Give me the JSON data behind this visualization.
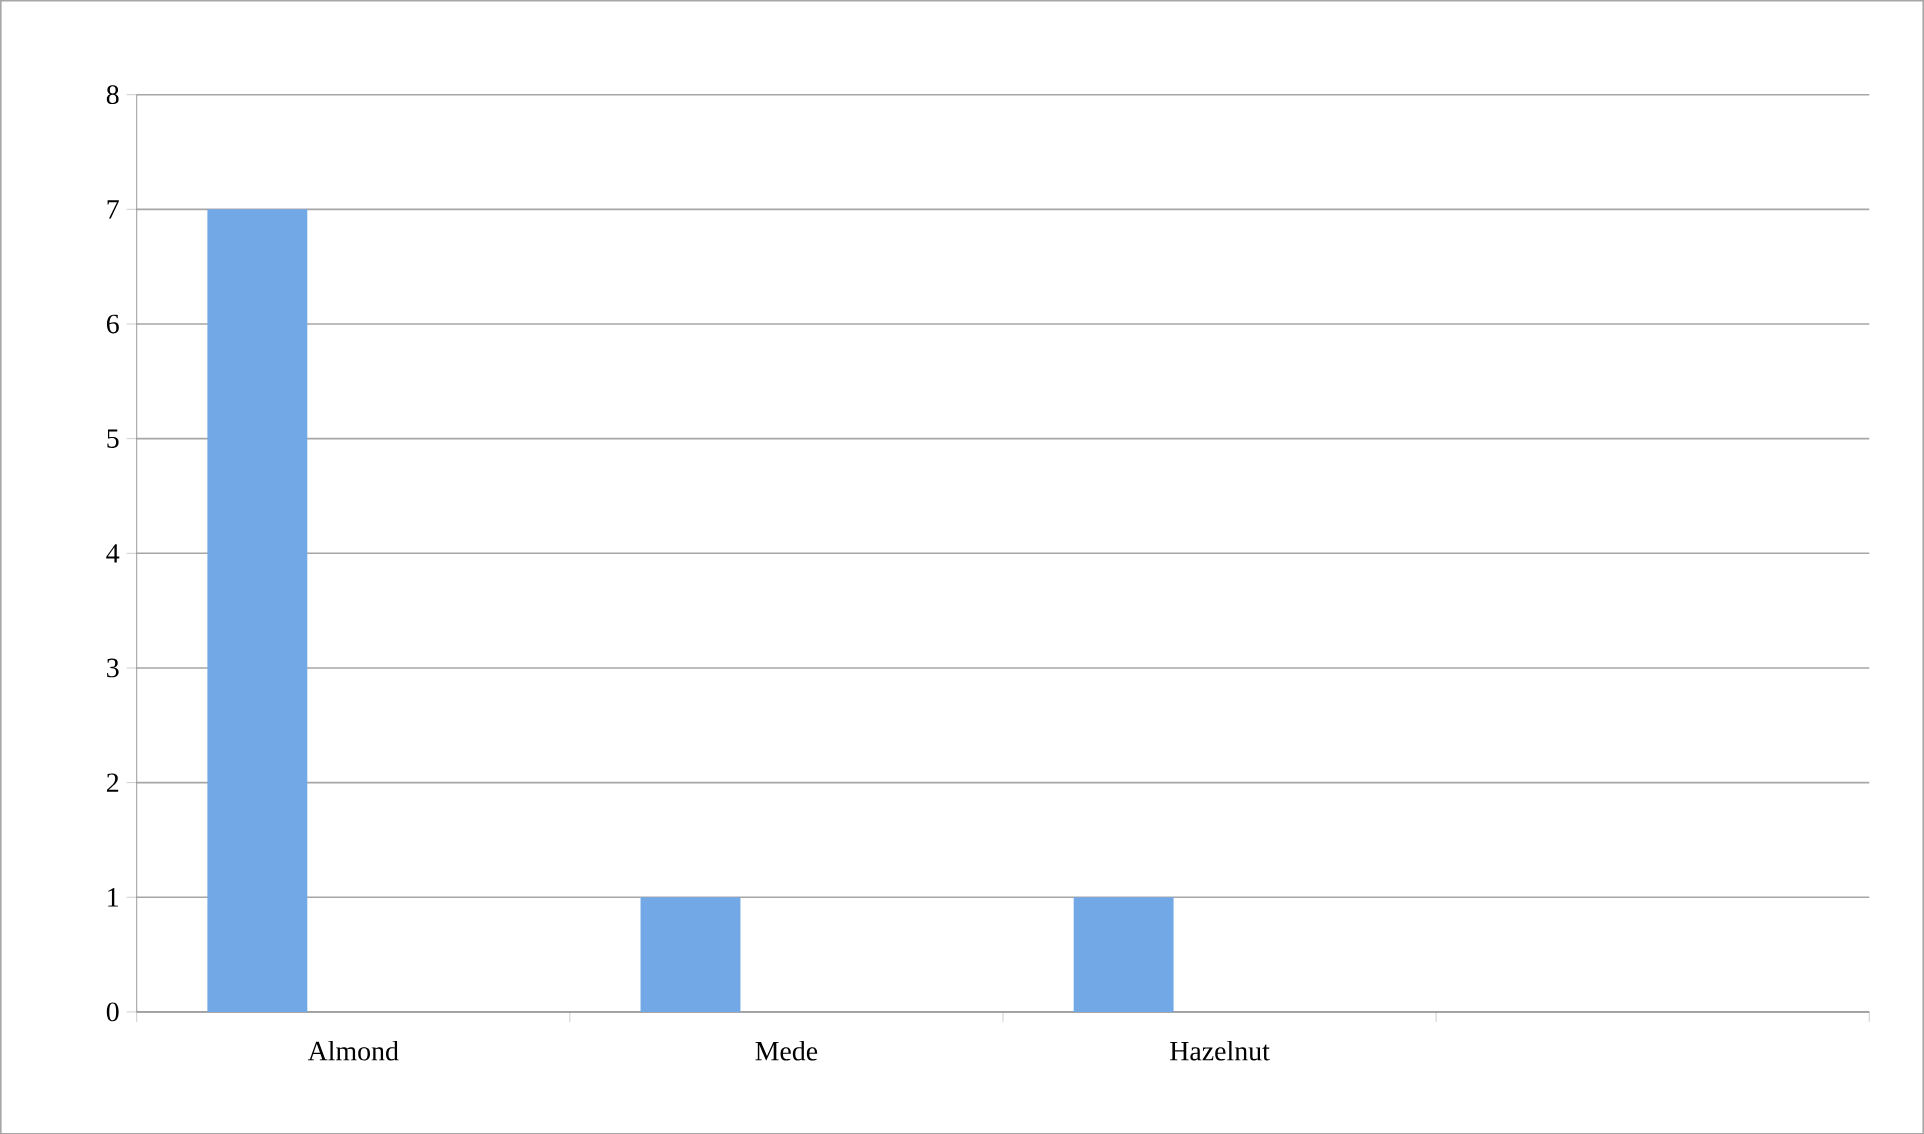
{
  "chart_data": {
    "type": "bar",
    "categories": [
      "Almond",
      "Mede",
      "Hazelnut",
      null
    ],
    "values": [
      7,
      1,
      1,
      null
    ],
    "color": "#72a8e6",
    "ylim": [
      0,
      8
    ],
    "yticks": [
      0,
      1,
      2,
      3,
      4,
      5,
      6,
      7,
      8
    ],
    "grid": "y"
  }
}
